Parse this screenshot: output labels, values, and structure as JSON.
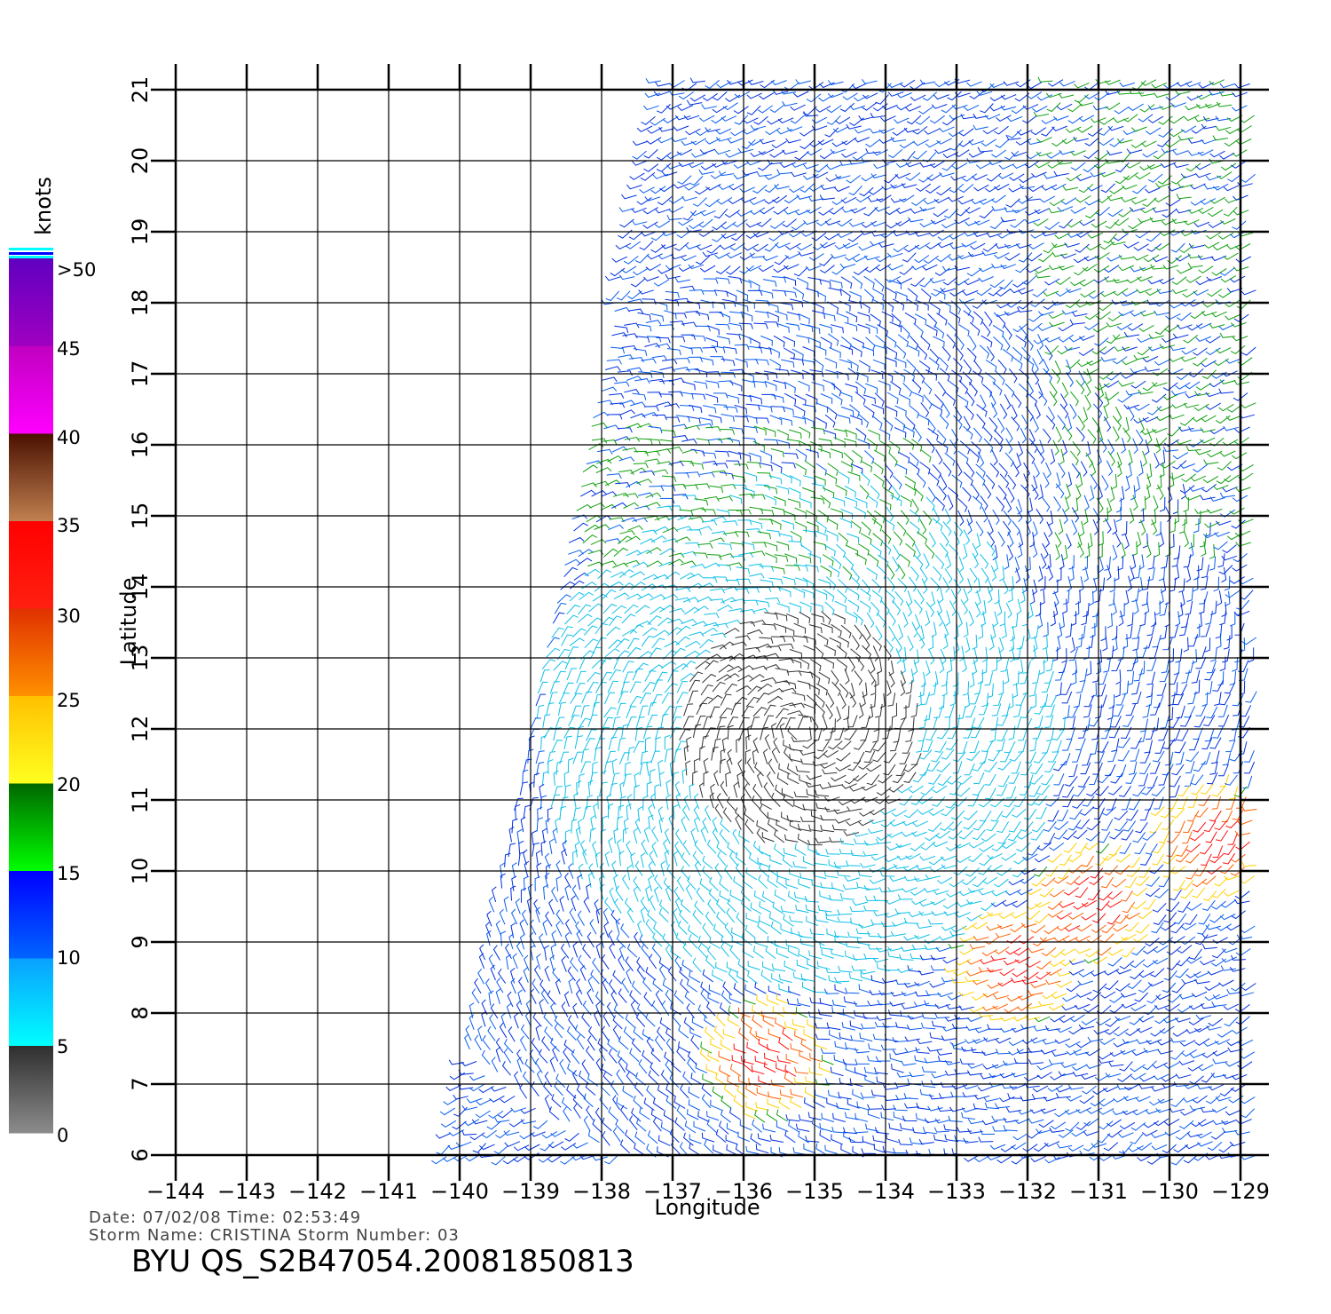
{
  "map": {
    "lon_range": [
      -144,
      -128.6
    ],
    "lat_range": [
      6,
      21
    ],
    "lon_ticks": [
      "−144",
      "−143",
      "−142",
      "−141",
      "−140",
      "−139",
      "−138",
      "−137",
      "−136",
      "−135",
      "−134",
      "−133",
      "−132",
      "−131",
      "−130",
      "−129"
    ],
    "lat_ticks": [
      "6",
      "7",
      "8",
      "9",
      "10",
      "11",
      "12",
      "13",
      "14",
      "15",
      "16",
      "17",
      "18",
      "19",
      "20",
      "21"
    ],
    "xlabel": "Longitude",
    "ylabel": "Latitude",
    "swath": {
      "top_lon_min": -137,
      "bottom_lon_min": -140,
      "description_color_scale": "wind speed"
    },
    "storm_center": {
      "lon": -135.2,
      "lat": 12.0
    }
  },
  "colorbar": {
    "unit_label": "knots",
    "labels": [
      ">50",
      "45",
      "40",
      "35",
      "30",
      "25",
      "20",
      "15",
      "10",
      "5",
      "0"
    ],
    "segments": [
      {
        "range": "0-5",
        "color_top": "#2e2e2e",
        "color_bottom": "#8c8c8c"
      },
      {
        "range": "5-10",
        "color_top": "#0aa0ff",
        "color_bottom": "#00ffff"
      },
      {
        "range": "10-15",
        "color_top": "#0000ff",
        "color_bottom": "#0064ff"
      },
      {
        "range": "15-20",
        "color_top": "#006600",
        "color_bottom": "#00ff00"
      },
      {
        "range": "20-25",
        "color_top": "#ffc000",
        "color_bottom": "#ffff20"
      },
      {
        "range": "25-30",
        "color_top": "#e03000",
        "color_bottom": "#ff9000"
      },
      {
        "range": "30-35",
        "color_top": "#ff0000",
        "color_bottom": "#ff2010"
      },
      {
        "range": "35-40",
        "color_top": "#4a1000",
        "color_bottom": "#c08050"
      },
      {
        "range": "40-45",
        "color_top": "#c000c0",
        "color_bottom": "#ff00ff"
      },
      {
        "range": "45-50",
        "color_top": "#6000c0",
        "color_bottom": "#a000c0"
      }
    ]
  },
  "footer": {
    "line1": "Date: 07/02/08   Time: 02:53:49",
    "line2": "Storm  Name: CRISTINA   Storm  Number: 03",
    "title": "BYU  QS_S2B47054.20081850813"
  }
}
